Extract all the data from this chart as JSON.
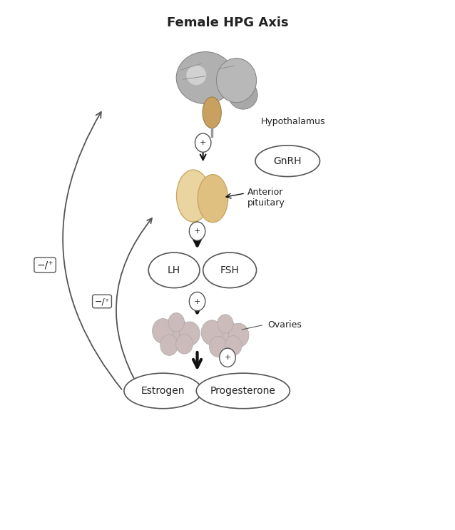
{
  "title": "Female HPG Axis",
  "title_fontsize": 13,
  "title_fontweight": "bold",
  "bg_color": "#ffffff",
  "figsize": [
    6.38,
    7.43
  ],
  "dpi": 100,
  "labels": {
    "hypothalamus": "Hypothalamus",
    "gnrh": "GnRH",
    "anterior_pituitary": "Anterior\npituitary",
    "lh": "LH",
    "fsh": "FSH",
    "ovaries": "Ovaries",
    "estrogen": "Estrogen",
    "progesterone": "Progesterone",
    "neg_pos_outer": "−/⁺",
    "neg_pos_inner": "−/⁺"
  },
  "plus_symbol": "+",
  "colors": {
    "arrow_color": "#111111",
    "text_color": "#222222",
    "ellipse_edge": "#555555",
    "plus_circle_color": "#555555",
    "feedback_line_color": "#555555",
    "brain_fill": "#b0b0b0",
    "brain_edge": "#888888",
    "brainstem_fill": "#c8a060",
    "pituitary_fill1": "#e8d4a0",
    "pituitary_fill2": "#d4b870",
    "ovary_fill": "#ccbbbb",
    "ovary_edge": "#aaaaaa"
  }
}
